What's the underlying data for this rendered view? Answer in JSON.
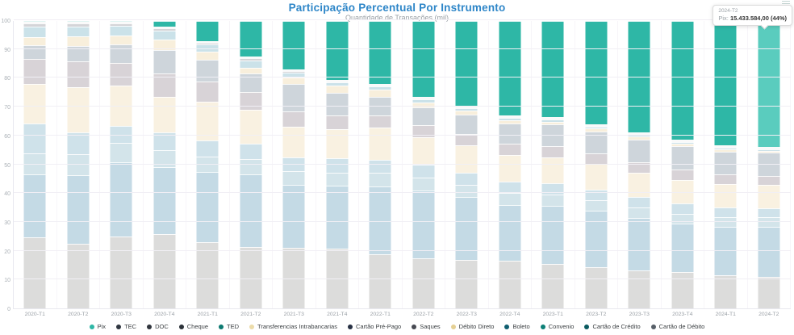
{
  "header": {
    "title": "Participação Percentual Por Instrumento",
    "subtitle": "Quantidade de Transações (mil)"
  },
  "colors": {
    "title": "#2e86c8",
    "pix_hover": "#5accbe",
    "axis_label": "#9aa0a6"
  },
  "tooltip": {
    "title": "2024-T2",
    "series_label": "Pix:",
    "value": "15.433.584,00 (44%)"
  },
  "toolbox": {
    "menu_icon": "hamburger-menu"
  },
  "chart_data": {
    "type": "bar",
    "stacked": true,
    "unit": "percent",
    "title": "Participação Percentual Por Instrumento",
    "subtitle": "Quantidade de Transações (mil)",
    "ylim": [
      0,
      100
    ],
    "y_ticks": [
      0,
      10,
      20,
      30,
      40,
      50,
      60,
      70,
      80,
      90,
      100
    ],
    "grid": true,
    "legend_position": "bottom",
    "highlighted_category": "2024-T2",
    "highlighted_series": "Pix",
    "categories": [
      "2020-T1",
      "2020-T2",
      "2020-T3",
      "2020-T4",
      "2021-T1",
      "2021-T2",
      "2021-T3",
      "2021-T4",
      "2022-T1",
      "2022-T2",
      "2022-T3",
      "2022-T4",
      "2023-T1",
      "2023-T2",
      "2023-T3",
      "2023-T4",
      "2024-T1",
      "2024-T2"
    ],
    "series": [
      {
        "name": "Pix",
        "legend_color": "#2eb7a6",
        "color": "#2eb7a6",
        "values": [
          0,
          0,
          0,
          2.0,
          7.0,
          12.5,
          17.0,
          20.5,
          22.0,
          26.5,
          29.5,
          33.0,
          33.5,
          36.0,
          39.0,
          41.5,
          43.5,
          44.0
        ]
      },
      {
        "name": "TEC",
        "legend_color": "#2f3640",
        "color": "#dadbdd",
        "values": [
          0.1,
          0.1,
          0.1,
          0.1,
          0.1,
          0.1,
          0.1,
          0.1,
          0.1,
          0.1,
          0.1,
          0.1,
          0.1,
          0.1,
          0.1,
          0.1,
          0.1,
          0.1
        ]
      },
      {
        "name": "DOC",
        "legend_color": "#30353d",
        "color": "#d8d9db",
        "values": [
          0.4,
          0.4,
          0.3,
          0.3,
          0.2,
          0.2,
          0.2,
          0.1,
          0.1,
          0.1,
          0.1,
          0.1,
          0.1,
          0.1,
          0.1,
          0.1,
          0.1,
          0.1
        ]
      },
      {
        "name": "Cheque",
        "legend_color": "#2b3138",
        "color": "#d4d5d8",
        "values": [
          1.0,
          0.9,
          0.8,
          0.8,
          0.7,
          0.6,
          0.5,
          0.5,
          0.4,
          0.4,
          0.3,
          0.3,
          0.3,
          0.2,
          0.2,
          0.2,
          0.2,
          0.2
        ]
      },
      {
        "name": "TED",
        "legend_color": "#0d7a71",
        "color": "#cbe2e9",
        "values": [
          3.8,
          3.6,
          3.4,
          3.2,
          2.4,
          2.6,
          1.6,
          1.1,
          1.1,
          1.0,
          0.9,
          0.8,
          0.8,
          0.7,
          0.6,
          0.6,
          0.5,
          0.5
        ]
      },
      {
        "name": "Transferencias Intrabancarias",
        "legend_color": "#ecdcaa",
        "color": "#f8efdc",
        "values": [
          2.6,
          3.4,
          3.1,
          3.6,
          2.9,
          2.1,
          2.2,
          2.4,
          2.4,
          1.6,
          1.3,
          1.1,
          1.0,
          1.0,
          0.9,
          0.8,
          0.8,
          0.7
        ]
      },
      {
        "name": "Cartão Pré-Pago",
        "legend_color": "#273043",
        "color": "#ced5db",
        "values": [
          5.0,
          5.2,
          6.4,
          8.0,
          7.6,
          6.3,
          9.6,
          7.8,
          6.4,
          6.2,
          6.8,
          7.2,
          7.6,
          7.8,
          8.0,
          8.2,
          8.0,
          8.0
        ]
      },
      {
        "name": "Saques",
        "legend_color": "#474a52",
        "color": "#d8d3d7",
        "values": [
          8.6,
          9.2,
          8.1,
          8.3,
          7.0,
          6.3,
          5.4,
          4.8,
          4.4,
          4.2,
          4.0,
          3.9,
          3.8,
          3.7,
          3.6,
          3.5,
          3.4,
          3.3
        ]
      },
      {
        "name": "Débito Direto",
        "legend_color": "#e5d094",
        "color": "#f9f1e1",
        "values": [
          13.8,
          15.6,
          13.9,
          12.4,
          13.4,
          11.9,
          10.6,
          10.4,
          11.1,
          9.8,
          9.5,
          9.2,
          9.0,
          8.8,
          8.6,
          8.4,
          8.2,
          8.0
        ]
      },
      {
        "name": "Boleto",
        "legend_color": "#0f5e70",
        "color": "#cfe2ea",
        "values": [
          10.4,
          7.6,
          6.0,
          6.1,
          5.7,
          5.4,
          4.9,
          4.8,
          4.7,
          4.5,
          4.3,
          4.1,
          4.0,
          3.8,
          3.7,
          3.5,
          3.4,
          3.3
        ]
      },
      {
        "name": "Convenio",
        "legend_color": "#0d8077",
        "color": "#d3e4ea",
        "values": [
          7.4,
          7.5,
          6.8,
          5.9,
          5.5,
          5.2,
          4.9,
          4.7,
          4.6,
          4.4,
          4.2,
          4.0,
          3.9,
          3.7,
          3.6,
          3.4,
          3.3,
          3.2
        ]
      },
      {
        "name": "Cartão de Crédito",
        "legend_color": "#0a5a60",
        "color": "#c4dae5",
        "values": [
          22.2,
          23.8,
          26.1,
          23.5,
          24.5,
          25.3,
          22.0,
          21.8,
          23.7,
          23.8,
          22.2,
          19.7,
          20.5,
          19.7,
          18.2,
          16.9,
          16.9,
          17.5
        ]
      },
      {
        "name": "Cartão de Débito",
        "legend_color": "#575f68",
        "color": "#dcdcdb",
        "values": [
          24.7,
          22.7,
          25.0,
          25.8,
          23.0,
          21.5,
          21.0,
          21.0,
          19.0,
          17.4,
          16.8,
          16.5,
          15.4,
          14.4,
          13.4,
          12.8,
          11.6,
          11.1
        ]
      }
    ]
  }
}
